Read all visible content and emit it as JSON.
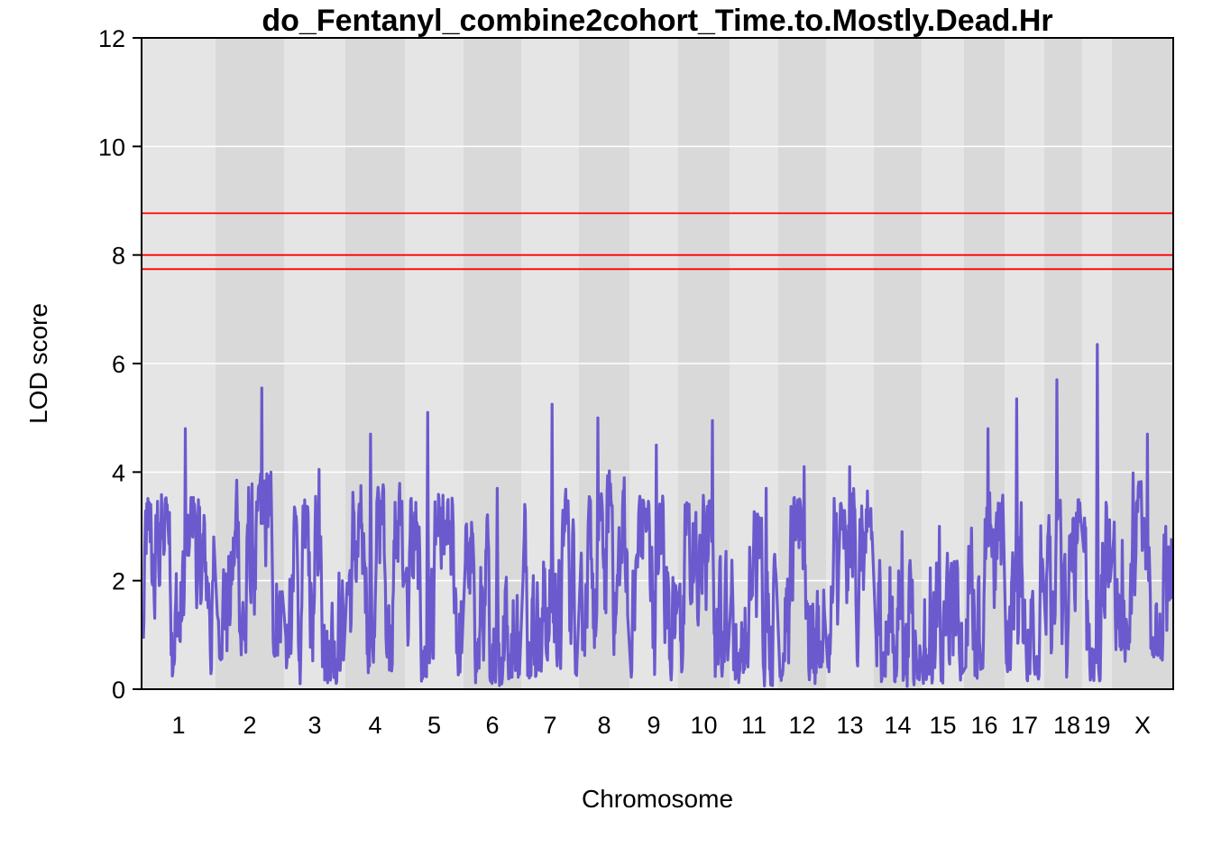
{
  "chart_data": {
    "type": "line",
    "title": "do_Fentanyl_combine2cohort_Time.to.Mostly.Dead.Hr",
    "xlabel": "Chromosome",
    "ylabel": "LOD score",
    "ylim": [
      0,
      12
    ],
    "yticks": [
      0,
      2,
      4,
      6,
      8,
      10,
      12
    ],
    "grid": "horizontal",
    "background_colors": [
      "#e5e5e5",
      "#d9d9d9"
    ],
    "line_color": "#6a5acd",
    "threshold_color": "#ff0000",
    "thresholds": [
      8.77,
      8.0,
      7.74
    ],
    "chromosomes": [
      {
        "label": "1",
        "peak": 4.8,
        "base": 1.4
      },
      {
        "label": "2",
        "peak": 5.55,
        "base": 1.8
      },
      {
        "label": "3",
        "peak": 4.05,
        "base": 1.4
      },
      {
        "label": "4",
        "peak": 4.7,
        "base": 1.6
      },
      {
        "label": "5",
        "peak": 5.1,
        "base": 1.4
      },
      {
        "label": "6",
        "peak": 3.7,
        "base": 1.3
      },
      {
        "label": "7",
        "peak": 5.25,
        "base": 1.5
      },
      {
        "label": "8",
        "peak": 5.0,
        "base": 1.9
      },
      {
        "label": "9",
        "peak": 4.5,
        "base": 1.4
      },
      {
        "label": "10",
        "peak": 4.95,
        "base": 1.5
      },
      {
        "label": "11",
        "peak": 3.7,
        "base": 1.3
      },
      {
        "label": "12",
        "peak": 4.1,
        "base": 1.4
      },
      {
        "label": "13",
        "peak": 4.1,
        "base": 1.6
      },
      {
        "label": "14",
        "peak": 2.9,
        "base": 1.0
      },
      {
        "label": "15",
        "peak": 3.0,
        "base": 1.2
      },
      {
        "label": "16",
        "peak": 4.8,
        "base": 1.5
      },
      {
        "label": "17",
        "peak": 5.35,
        "base": 1.4
      },
      {
        "label": "18",
        "peak": 5.7,
        "base": 1.3
      },
      {
        "label": "19",
        "peak": 6.35,
        "base": 1.4
      },
      {
        "label": "X",
        "peak": 4.7,
        "base": 1.8
      }
    ]
  }
}
